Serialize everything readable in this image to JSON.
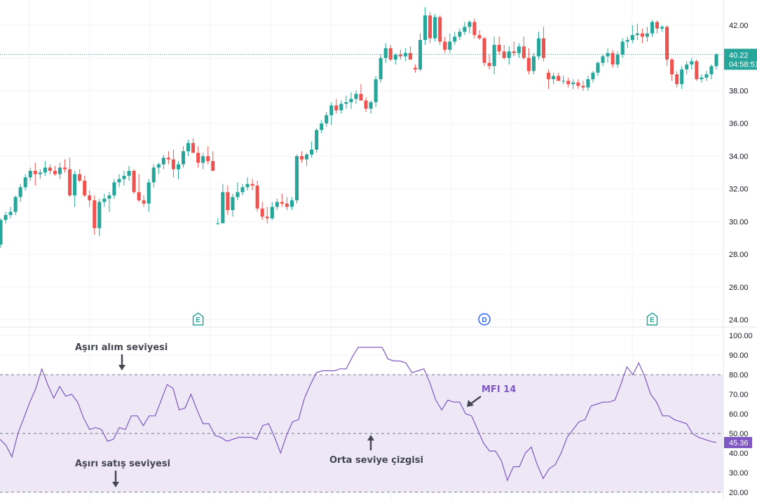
{
  "colors": {
    "up": "#26a69a",
    "down": "#ef5350",
    "mfi_line": "#7e57c2",
    "mfi_band": "#ede7f6",
    "grid": "#f0f3fa",
    "price_badge": "#26a69a",
    "mfi_badge": "#7e57c2",
    "earnings": "#26a69a",
    "dividend": "#2962ff",
    "annotation": "#434651"
  },
  "chart_data": [
    {
      "type": "candlestick",
      "price_axis_ticks": [
        "42.00",
        "40.00",
        "38.00",
        "36.00",
        "34.00",
        "32.00",
        "30.00",
        "28.00",
        "26.00",
        "24.00"
      ],
      "ylim": [
        23.6,
        43.2
      ],
      "last_price": {
        "value": "40.22",
        "countdown": "04:58:51"
      },
      "candles": [
        [
          28.6,
          30.2,
          28.4,
          30.1
        ],
        [
          30.1,
          30.6,
          29.9,
          30.4
        ],
        [
          30.4,
          30.9,
          30.2,
          30.6
        ],
        [
          30.6,
          31.6,
          30.4,
          31.5
        ],
        [
          31.5,
          32.3,
          31.2,
          32.1
        ],
        [
          32.1,
          32.9,
          31.9,
          32.7
        ],
        [
          32.7,
          33.3,
          32.5,
          33.1
        ],
        [
          33.1,
          33.6,
          32.2,
          32.9
        ],
        [
          32.9,
          33.2,
          32.6,
          33.0
        ],
        [
          33.0,
          33.7,
          32.8,
          33.3
        ],
        [
          33.3,
          33.5,
          32.9,
          33.1
        ],
        [
          33.1,
          33.4,
          32.8,
          32.9
        ],
        [
          32.9,
          33.6,
          32.6,
          33.3
        ],
        [
          33.3,
          33.8,
          33.0,
          33.2
        ],
        [
          33.2,
          33.9,
          31.5,
          31.6
        ],
        [
          31.6,
          33.1,
          30.9,
          32.9
        ],
        [
          32.9,
          33.2,
          32.4,
          32.5
        ],
        [
          32.5,
          32.8,
          31.5,
          31.6
        ],
        [
          31.6,
          31.9,
          30.9,
          31.3
        ],
        [
          31.3,
          31.6,
          29.2,
          29.6
        ],
        [
          29.6,
          31.4,
          29.1,
          31.2
        ],
        [
          31.2,
          31.7,
          30.9,
          31.4
        ],
        [
          31.4,
          31.8,
          30.6,
          31.6
        ],
        [
          31.6,
          32.6,
          31.4,
          32.4
        ],
        [
          32.4,
          32.9,
          32.1,
          32.6
        ],
        [
          32.6,
          33.1,
          32.2,
          32.8
        ],
        [
          32.8,
          33.4,
          32.5,
          33.1
        ],
        [
          33.1,
          33.2,
          31.7,
          31.8
        ],
        [
          31.8,
          32.9,
          31.2,
          31.3
        ],
        [
          31.3,
          31.6,
          30.9,
          31.1
        ],
        [
          31.1,
          32.6,
          30.6,
          32.4
        ],
        [
          32.4,
          33.5,
          32.1,
          33.3
        ],
        [
          33.3,
          33.6,
          32.9,
          33.5
        ],
        [
          33.5,
          34.1,
          33.2,
          33.9
        ],
        [
          33.9,
          34.3,
          33.5,
          33.8
        ],
        [
          33.8,
          34.4,
          32.7,
          33.2
        ],
        [
          33.2,
          33.7,
          32.6,
          33.5
        ],
        [
          33.5,
          34.6,
          33.3,
          34.3
        ],
        [
          34.3,
          35.0,
          34.0,
          34.8
        ],
        [
          34.8,
          35.1,
          34.3,
          34.2
        ],
        [
          34.2,
          34.6,
          33.3,
          33.6
        ],
        [
          33.6,
          34.2,
          33.2,
          34.0
        ],
        [
          34.0,
          34.6,
          33.5,
          33.7
        ],
        [
          33.7,
          34.3,
          33.1,
          33.1
        ],
        [
          29.9,
          30.2,
          29.8,
          29.9
        ],
        [
          29.9,
          32.3,
          29.9,
          31.8
        ],
        [
          31.8,
          32.2,
          30.4,
          30.7
        ],
        [
          30.7,
          31.7,
          30.3,
          31.5
        ],
        [
          31.5,
          32.4,
          31.3,
          31.8
        ],
        [
          31.8,
          32.3,
          31.6,
          32.1
        ],
        [
          32.1,
          32.7,
          31.9,
          32.3
        ],
        [
          32.3,
          32.6,
          31.9,
          32.2
        ],
        [
          32.2,
          32.5,
          30.6,
          30.8
        ],
        [
          30.8,
          31.2,
          30.1,
          30.3
        ],
        [
          30.3,
          30.9,
          29.9,
          30.2
        ],
        [
          30.2,
          31.2,
          30.1,
          30.9
        ],
        [
          30.9,
          31.4,
          30.7,
          31.2
        ],
        [
          31.2,
          31.7,
          30.9,
          31.1
        ],
        [
          31.1,
          31.5,
          30.7,
          30.9
        ],
        [
          30.9,
          31.5,
          30.7,
          31.3
        ],
        [
          31.3,
          34.1,
          31.1,
          34.0
        ],
        [
          34.0,
          34.3,
          33.6,
          33.8
        ],
        [
          33.8,
          34.2,
          33.4,
          34.1
        ],
        [
          34.1,
          34.9,
          33.9,
          34.4
        ],
        [
          34.4,
          35.7,
          34.2,
          35.6
        ],
        [
          35.6,
          36.2,
          35.4,
          36.0
        ],
        [
          36.0,
          36.7,
          35.8,
          36.5
        ],
        [
          36.5,
          37.3,
          35.9,
          37.1
        ],
        [
          37.1,
          37.5,
          36.6,
          36.8
        ],
        [
          36.8,
          37.4,
          36.6,
          37.2
        ],
        [
          37.2,
          37.7,
          36.9,
          37.3
        ],
        [
          37.3,
          37.9,
          36.9,
          37.5
        ],
        [
          37.5,
          38.0,
          37.2,
          37.8
        ],
        [
          37.8,
          38.4,
          37.4,
          37.4
        ],
        [
          37.4,
          37.6,
          36.7,
          36.9
        ],
        [
          36.9,
          37.4,
          36.6,
          37.3
        ],
        [
          37.3,
          38.9,
          37.0,
          38.7
        ],
        [
          38.7,
          40.2,
          38.5,
          40.0
        ],
        [
          40.0,
          40.9,
          39.7,
          40.6
        ],
        [
          40.6,
          40.8,
          39.8,
          39.9
        ],
        [
          39.9,
          40.3,
          39.6,
          40.2
        ],
        [
          40.2,
          40.5,
          39.9,
          40.1
        ],
        [
          40.1,
          40.6,
          39.8,
          40.3
        ],
        [
          40.3,
          40.7,
          39.9,
          39.9
        ],
        [
          39.4,
          39.6,
          39.1,
          39.3
        ],
        [
          39.3,
          41.5,
          39.2,
          41.1
        ],
        [
          41.1,
          43.1,
          40.8,
          42.6
        ],
        [
          42.6,
          42.8,
          40.9,
          41.2
        ],
        [
          41.2,
          42.7,
          41.0,
          42.5
        ],
        [
          42.5,
          42.6,
          40.8,
          41.0
        ],
        [
          41.0,
          41.3,
          40.3,
          40.5
        ],
        [
          40.5,
          41.5,
          40.3,
          41.0
        ],
        [
          41.0,
          41.6,
          40.8,
          41.3
        ],
        [
          41.3,
          41.8,
          41.1,
          41.6
        ],
        [
          41.6,
          42.2,
          41.4,
          41.9
        ],
        [
          41.9,
          42.3,
          41.5,
          42.2
        ],
        [
          42.2,
          42.4,
          41.2,
          41.4
        ],
        [
          41.4,
          41.7,
          41.1,
          41.2
        ],
        [
          41.2,
          41.3,
          39.5,
          39.7
        ],
        [
          39.7,
          40.2,
          39.3,
          39.5
        ],
        [
          39.5,
          41.3,
          39.0,
          40.8
        ],
        [
          40.8,
          41.3,
          40.2,
          40.4
        ],
        [
          40.4,
          40.8,
          39.9,
          40.0
        ],
        [
          40.0,
          40.7,
          39.6,
          40.4
        ],
        [
          40.4,
          41.0,
          40.1,
          40.3
        ],
        [
          40.3,
          40.9,
          40.0,
          40.7
        ],
        [
          40.7,
          41.3,
          39.9,
          40.0
        ],
        [
          40.0,
          40.6,
          39.0,
          39.2
        ],
        [
          39.2,
          40.3,
          39.0,
          40.1
        ],
        [
          40.1,
          41.6,
          39.9,
          41.2
        ],
        [
          41.2,
          41.9,
          39.8,
          40.0
        ],
        [
          39.1,
          39.3,
          38.1,
          38.7
        ],
        [
          38.7,
          39.1,
          38.4,
          38.9
        ],
        [
          38.9,
          39.1,
          38.6,
          38.6
        ],
        [
          38.6,
          38.9,
          38.4,
          38.6
        ],
        [
          38.6,
          38.8,
          38.2,
          38.4
        ],
        [
          38.4,
          38.7,
          38.1,
          38.5
        ],
        [
          38.5,
          38.7,
          38.1,
          38.3
        ],
        [
          38.3,
          38.6,
          38.0,
          38.2
        ],
        [
          38.2,
          38.9,
          38.0,
          38.7
        ],
        [
          38.7,
          39.2,
          38.5,
          39.1
        ],
        [
          39.1,
          39.8,
          38.9,
          39.7
        ],
        [
          39.7,
          40.2,
          39.5,
          40.1
        ],
        [
          40.1,
          40.6,
          39.7,
          40.3
        ],
        [
          40.3,
          40.5,
          39.4,
          39.6
        ],
        [
          39.6,
          40.4,
          39.4,
          40.2
        ],
        [
          40.2,
          41.2,
          40.0,
          41.0
        ],
        [
          41.0,
          41.3,
          40.6,
          41.1
        ],
        [
          41.1,
          42.0,
          40.9,
          41.4
        ],
        [
          41.4,
          42.1,
          41.1,
          41.5
        ],
        [
          41.5,
          41.8,
          40.9,
          41.3
        ],
        [
          41.3,
          41.9,
          41.0,
          41.5
        ],
        [
          41.5,
          42.3,
          41.3,
          42.2
        ],
        [
          42.2,
          42.3,
          41.5,
          41.8
        ],
        [
          41.8,
          42.0,
          41.6,
          41.9
        ],
        [
          41.9,
          42.0,
          39.5,
          39.9
        ],
        [
          39.9,
          40.0,
          38.6,
          39.0
        ],
        [
          39.0,
          39.2,
          38.2,
          38.4
        ],
        [
          38.4,
          39.5,
          38.1,
          39.3
        ],
        [
          39.3,
          39.8,
          39.0,
          39.6
        ],
        [
          39.6,
          40.0,
          39.3,
          39.8
        ],
        [
          39.8,
          39.9,
          38.6,
          38.7
        ],
        [
          38.7,
          39.0,
          38.5,
          38.8
        ],
        [
          38.8,
          39.2,
          38.6,
          39.0
        ],
        [
          39.0,
          39.6,
          38.7,
          39.5
        ],
        [
          39.5,
          40.3,
          39.3,
          40.22
        ]
      ],
      "event_markers": [
        {
          "label": "E",
          "index": 40,
          "kind": "earnings"
        },
        {
          "label": "D",
          "index": 98,
          "kind": "dividend"
        },
        {
          "label": "E",
          "index": 132,
          "kind": "earnings"
        }
      ]
    },
    {
      "type": "line",
      "series": [
        {
          "name": "MFI 14",
          "values": [
            47,
            44,
            38,
            50,
            58,
            66,
            73,
            83,
            75,
            68,
            74,
            69,
            70,
            66,
            58,
            52,
            53,
            52,
            46,
            47,
            53,
            52,
            59,
            59,
            54,
            59,
            59,
            67,
            75,
            73,
            62,
            63,
            70,
            62,
            55,
            55,
            49,
            48,
            46,
            47,
            48,
            48,
            48,
            47,
            54,
            55,
            48,
            40,
            49,
            56,
            57,
            68,
            75,
            81,
            82,
            82,
            82,
            83,
            83,
            89,
            94,
            94,
            94,
            94,
            94,
            88,
            87,
            87,
            86,
            81,
            82,
            83,
            76,
            67,
            62,
            67,
            66,
            66,
            60,
            59,
            52,
            45,
            41,
            41,
            36,
            26,
            33,
            33,
            40,
            43,
            34,
            27,
            32,
            34,
            40,
            48,
            52,
            56,
            57,
            64,
            65,
            66,
            66,
            67,
            75,
            84,
            80,
            86,
            79,
            70,
            66,
            59,
            59,
            57,
            56,
            55,
            50,
            48,
            47,
            46,
            45.36
          ]
        }
      ],
      "yaxis_ticks": [
        "100.00",
        "90.00",
        "80.00",
        "70.00",
        "60.00",
        "50.00",
        "40.00",
        "30.00",
        "20.00"
      ],
      "ylim": [
        16,
        104
      ],
      "levels": [
        80,
        50,
        20
      ],
      "last_value": "45.36",
      "annotations": {
        "overbought": "Aşırı alım seviyesi",
        "oversold": "Aşırı satış seviyesi",
        "midline": "Orta seviye çizgisi",
        "series_label": "MFI 14"
      }
    }
  ]
}
